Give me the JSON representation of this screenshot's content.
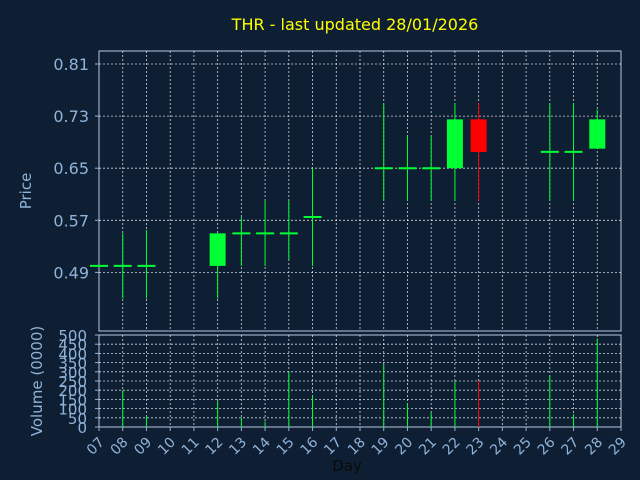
{
  "chart_data": {
    "type": "candlestick",
    "title": "THR - last updated 28/01/2026",
    "xlabel": "Day",
    "ylabel_price": "Price",
    "ylabel_volume": "Volume (0000)",
    "x_ticks": [
      "07",
      "08",
      "09",
      "10",
      "11",
      "12",
      "13",
      "14",
      "15",
      "16",
      "17",
      "18",
      "19",
      "20",
      "21",
      "22",
      "23",
      "24",
      "25",
      "26",
      "27",
      "28",
      "29"
    ],
    "price_ticks": [
      "0.81",
      "0.73",
      "0.65",
      "0.57",
      "0.49"
    ],
    "price_tick_values": [
      0.81,
      0.73,
      0.65,
      0.57,
      0.49
    ],
    "price_ylim": [
      0.4,
      0.83
    ],
    "volume_ticks": [
      "500",
      "450",
      "400",
      "350",
      "300",
      "250",
      "200",
      "150",
      "100",
      "50",
      "0"
    ],
    "volume_tick_values": [
      500,
      450,
      400,
      350,
      300,
      250,
      200,
      150,
      100,
      50,
      0
    ],
    "volume_ylim": [
      0,
      500
    ],
    "grid": true,
    "colors": {
      "background": "#0f1f33",
      "title": "#ffff00",
      "axis_text": "#8fb3d9",
      "up": "#00ff33",
      "down": "#ff0000",
      "grid": "#ffffff"
    },
    "candles": [
      {
        "day": 7,
        "open": 0.5,
        "high": 0.5,
        "low": 0.5,
        "close": 0.5,
        "volume": 0
      },
      {
        "day": 8,
        "open": 0.5,
        "high": 0.55,
        "low": 0.45,
        "close": 0.5,
        "volume": 200
      },
      {
        "day": 9,
        "open": 0.5,
        "high": 0.555,
        "low": 0.45,
        "close": 0.5,
        "volume": 60
      },
      {
        "day": 12,
        "open": 0.5,
        "high": 0.55,
        "low": 0.45,
        "close": 0.55,
        "volume": 140
      },
      {
        "day": 13,
        "open": 0.55,
        "high": 0.575,
        "low": 0.5,
        "close": 0.55,
        "volume": 50
      },
      {
        "day": 14,
        "open": 0.55,
        "high": 0.6,
        "low": 0.5,
        "close": 0.55,
        "volume": 30
      },
      {
        "day": 15,
        "open": 0.55,
        "high": 0.6,
        "low": 0.51,
        "close": 0.55,
        "volume": 300
      },
      {
        "day": 16,
        "open": 0.575,
        "high": 0.65,
        "low": 0.5,
        "close": 0.575,
        "volume": 170
      },
      {
        "day": 19,
        "open": 0.65,
        "high": 0.75,
        "low": 0.6,
        "close": 0.65,
        "volume": 340
      },
      {
        "day": 20,
        "open": 0.65,
        "high": 0.7,
        "low": 0.6,
        "close": 0.65,
        "volume": 130
      },
      {
        "day": 21,
        "open": 0.65,
        "high": 0.7,
        "low": 0.6,
        "close": 0.65,
        "volume": 80
      },
      {
        "day": 22,
        "open": 0.65,
        "high": 0.75,
        "low": 0.6,
        "close": 0.725,
        "volume": 250
      },
      {
        "day": 23,
        "open": 0.725,
        "high": 0.75,
        "low": 0.6,
        "close": 0.675,
        "volume": 250
      },
      {
        "day": 26,
        "open": 0.675,
        "high": 0.75,
        "low": 0.6,
        "close": 0.675,
        "volume": 280
      },
      {
        "day": 27,
        "open": 0.675,
        "high": 0.75,
        "low": 0.6,
        "close": 0.675,
        "volume": 70
      },
      {
        "day": 28,
        "open": 0.68,
        "high": 0.74,
        "low": 0.68,
        "close": 0.725,
        "volume": 480
      }
    ]
  }
}
